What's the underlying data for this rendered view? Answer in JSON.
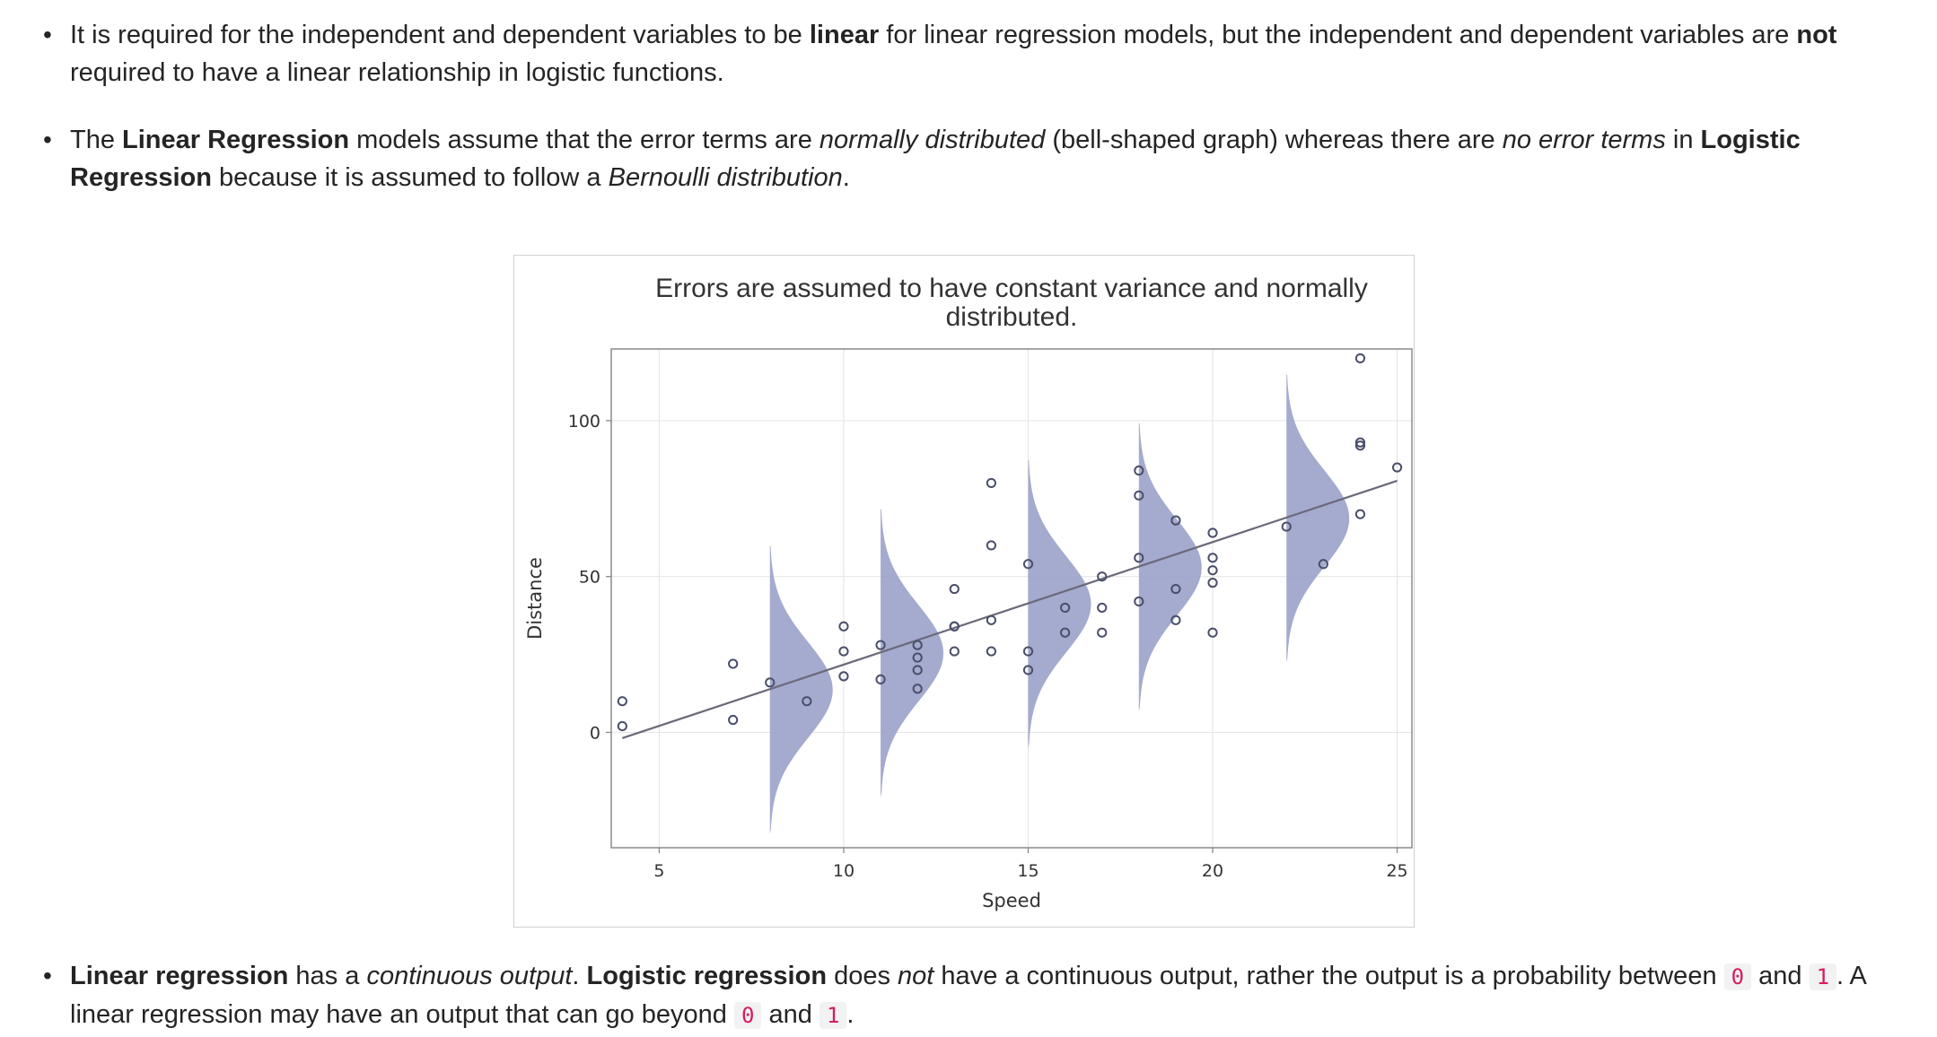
{
  "paragraphs": [
    {
      "segments": [
        {
          "t": "It is required for the independent and dependent variables to be ",
          "s": ""
        },
        {
          "t": "linear",
          "s": "b"
        },
        {
          "t": " for linear regression models, but the independent and dependent variables are ",
          "s": ""
        },
        {
          "t": "not",
          "s": "b"
        },
        {
          "t": " required to have a linear relationship in logistic functions.",
          "s": ""
        }
      ]
    },
    {
      "segments": [
        {
          "t": "The ",
          "s": ""
        },
        {
          "t": "Linear Regression",
          "s": "b"
        },
        {
          "t": " models assume that the error terms are ",
          "s": ""
        },
        {
          "t": "normally distributed",
          "s": "i"
        },
        {
          "t": " (bell-shaped graph) whereas there are ",
          "s": ""
        },
        {
          "t": "no error terms",
          "s": "i"
        },
        {
          "t": " in ",
          "s": ""
        },
        {
          "t": "Logistic Regression",
          "s": "b"
        },
        {
          "t": " because it is assumed to follow a ",
          "s": ""
        },
        {
          "t": "Bernoulli distribution",
          "s": "i"
        },
        {
          "t": ".",
          "s": ""
        }
      ]
    },
    {
      "segments": [
        {
          "t": "Linear regression",
          "s": "b"
        },
        {
          "t": " has a ",
          "s": ""
        },
        {
          "t": "continuous output",
          "s": "i"
        },
        {
          "t": ". ",
          "s": ""
        },
        {
          "t": "Logistic regression",
          "s": "b"
        },
        {
          "t": " does ",
          "s": ""
        },
        {
          "t": "not",
          "s": "i"
        },
        {
          "t": " have a continuous output, rather the output is a probability between ",
          "s": ""
        },
        {
          "t": "0",
          "s": "code"
        },
        {
          "t": " and ",
          "s": ""
        },
        {
          "t": "1",
          "s": "code"
        },
        {
          "t": ". A linear regression may have an output that can go beyond ",
          "s": ""
        },
        {
          "t": "0",
          "s": "code"
        },
        {
          "t": " and ",
          "s": ""
        },
        {
          "t": "1",
          "s": "code"
        },
        {
          "t": ".",
          "s": ""
        }
      ]
    }
  ],
  "chart_data": {
    "type": "scatter",
    "title_lines": [
      "Errors are assumed to have constant variance and normally",
      "distributed."
    ],
    "xlabel": "Speed",
    "ylabel": "Distance",
    "xlim": [
      3.7,
      25.4
    ],
    "ylim": [
      -37,
      123
    ],
    "xticks": [
      5,
      10,
      15,
      20,
      25
    ],
    "yticks": [
      0,
      50,
      100
    ],
    "grid": true,
    "colors": {
      "points": "#4a4f6a",
      "line": "#6a6a7a",
      "bell": "#9da3cb",
      "grid": "#e6e6e6",
      "frame": "#8a8a8a"
    },
    "points": [
      [
        4,
        2
      ],
      [
        4,
        10
      ],
      [
        7,
        4
      ],
      [
        7,
        22
      ],
      [
        8,
        16
      ],
      [
        9,
        10
      ],
      [
        10,
        18
      ],
      [
        10,
        26
      ],
      [
        10,
        34
      ],
      [
        11,
        17
      ],
      [
        11,
        28
      ],
      [
        12,
        14
      ],
      [
        12,
        20
      ],
      [
        12,
        24
      ],
      [
        12,
        28
      ],
      [
        13,
        26
      ],
      [
        13,
        34
      ],
      [
        13,
        34
      ],
      [
        13,
        46
      ],
      [
        14,
        26
      ],
      [
        14,
        36
      ],
      [
        14,
        60
      ],
      [
        14,
        80
      ],
      [
        15,
        20
      ],
      [
        15,
        26
      ],
      [
        15,
        54
      ],
      [
        16,
        32
      ],
      [
        16,
        40
      ],
      [
        17,
        32
      ],
      [
        17,
        40
      ],
      [
        17,
        50
      ],
      [
        18,
        42
      ],
      [
        18,
        56
      ],
      [
        18,
        76
      ],
      [
        18,
        84
      ],
      [
        19,
        36
      ],
      [
        19,
        46
      ],
      [
        19,
        68
      ],
      [
        20,
        32
      ],
      [
        20,
        48
      ],
      [
        20,
        52
      ],
      [
        20,
        56
      ],
      [
        20,
        64
      ],
      [
        22,
        66
      ],
      [
        23,
        54
      ],
      [
        24,
        70
      ],
      [
        24,
        92
      ],
      [
        24,
        93
      ],
      [
        24,
        120
      ],
      [
        25,
        85
      ]
    ],
    "regression_line": {
      "x": [
        4,
        25
      ],
      "y": [
        -1.85,
        80.71
      ]
    },
    "error_bells": [
      {
        "x": 8,
        "mean": 13.6,
        "sd": 15.4
      },
      {
        "x": 11,
        "mean": 25.4,
        "sd": 15.4
      },
      {
        "x": 15,
        "mean": 41.1,
        "sd": 15.4
      },
      {
        "x": 18,
        "mean": 52.9,
        "sd": 15.4
      },
      {
        "x": 22,
        "mean": 68.6,
        "sd": 15.4
      }
    ]
  }
}
